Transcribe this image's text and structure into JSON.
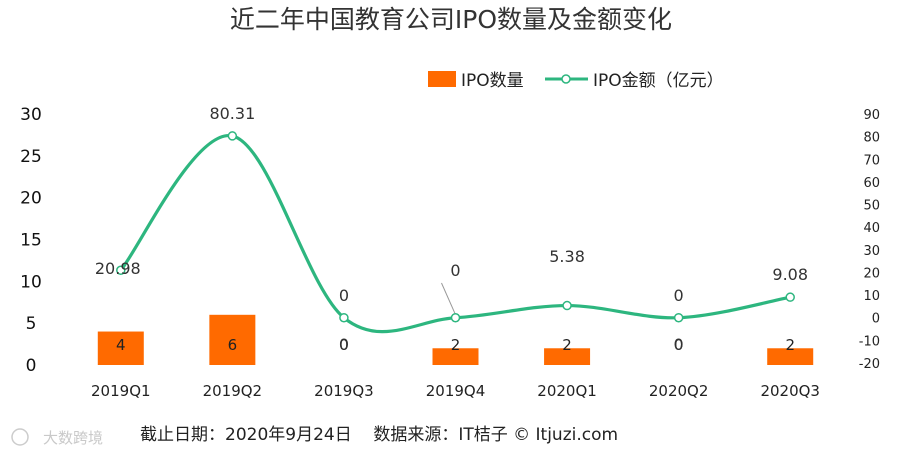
{
  "chart_data": {
    "type": "bar",
    "title": "近二年中国教育公司IPO数量及金额变化",
    "categories": [
      "2019Q1",
      "2019Q2",
      "2019Q3",
      "2019Q4",
      "2020Q1",
      "2020Q2",
      "2020Q3"
    ],
    "series": [
      {
        "name": "IPO数量",
        "type": "bar",
        "axis": "left",
        "values": [
          4,
          6,
          0,
          2,
          2,
          0,
          2
        ],
        "labels": [
          "4",
          "6",
          "0",
          "2",
          "2",
          "0",
          "2"
        ],
        "color": "#FF6A00"
      },
      {
        "name": "IPO金额（亿元）",
        "type": "line",
        "axis": "right",
        "values": [
          20.98,
          80.31,
          0,
          0,
          5.38,
          0,
          9.08
        ],
        "labels": [
          "20.98",
          "80.31",
          "0",
          "0",
          "5.38",
          "0",
          "9.08"
        ],
        "color": "#2DB67F"
      }
    ],
    "left_axis": {
      "ylim": [
        0,
        30
      ],
      "ticks": [
        "0",
        "5",
        "10",
        "15",
        "20",
        "25",
        "30"
      ]
    },
    "right_axis": {
      "ylim": [
        -20,
        90
      ],
      "ticks": [
        "-20",
        "-10",
        "0",
        "10",
        "20",
        "30",
        "40",
        "50",
        "60",
        "70",
        "80",
        "90"
      ]
    },
    "legend_position": "top-right",
    "grid": false
  },
  "footer": {
    "source": "截止日期：2020年9月24日    数据来源：IT桔子 © Itjuzi.com",
    "watermark": "大数跨境"
  }
}
